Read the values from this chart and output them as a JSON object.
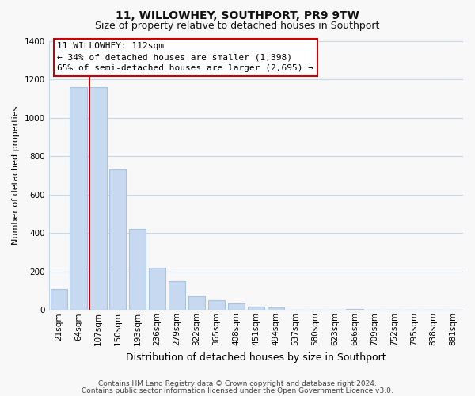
{
  "title": "11, WILLOWHEY, SOUTHPORT, PR9 9TW",
  "subtitle": "Size of property relative to detached houses in Southport",
  "xlabel": "Distribution of detached houses by size in Southport",
  "ylabel": "Number of detached properties",
  "bar_labels": [
    "21sqm",
    "64sqm",
    "107sqm",
    "150sqm",
    "193sqm",
    "236sqm",
    "279sqm",
    "322sqm",
    "365sqm",
    "408sqm",
    "451sqm",
    "494sqm",
    "537sqm",
    "580sqm",
    "623sqm",
    "666sqm",
    "709sqm",
    "752sqm",
    "795sqm",
    "838sqm",
    "881sqm"
  ],
  "bar_values": [
    107,
    1160,
    1160,
    730,
    420,
    220,
    148,
    73,
    50,
    33,
    18,
    15,
    0,
    0,
    0,
    5,
    0,
    0,
    0,
    0,
    0
  ],
  "bar_color": "#c6d9f0",
  "bar_edge_color": "#a8c4e0",
  "red_line_bar_index": 2,
  "red_line_color": "#cc0000",
  "annotation_title": "11 WILLOWHEY: 112sqm",
  "annotation_line1": "← 34% of detached houses are smaller (1,398)",
  "annotation_line2": "65% of semi-detached houses are larger (2,695) →",
  "annotation_box_facecolor": "#ffffff",
  "annotation_box_edgecolor": "#cc0000",
  "ylim": [
    0,
    1400
  ],
  "yticks": [
    0,
    200,
    400,
    600,
    800,
    1000,
    1200,
    1400
  ],
  "footer1": "Contains HM Land Registry data © Crown copyright and database right 2024.",
  "footer2": "Contains public sector information licensed under the Open Government Licence v3.0.",
  "bg_color": "#f8f8f8",
  "grid_color": "#c8d8e8",
  "title_fontsize": 10,
  "subtitle_fontsize": 9,
  "ylabel_fontsize": 8,
  "xlabel_fontsize": 9,
  "tick_fontsize": 7.5,
  "footer_fontsize": 6.5
}
